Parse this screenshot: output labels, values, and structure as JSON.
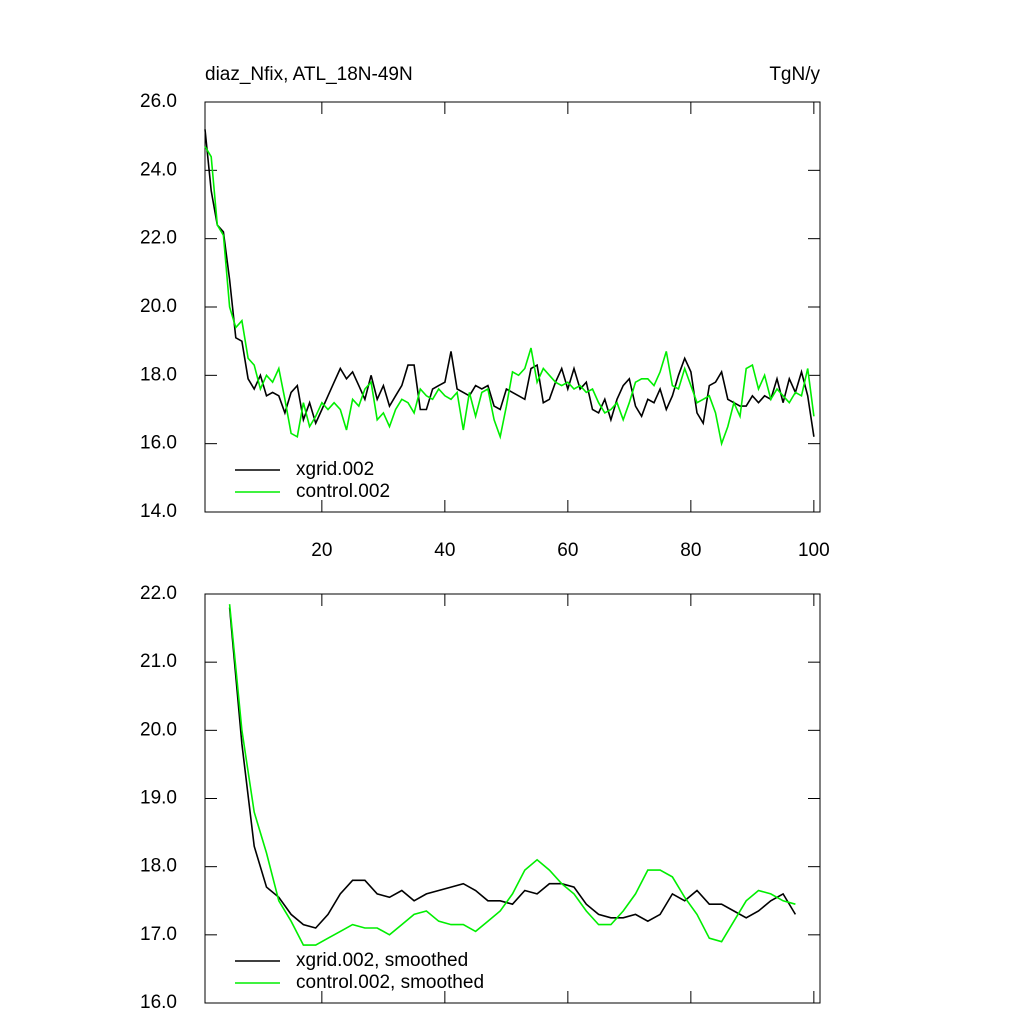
{
  "chart_data": [
    {
      "type": "line",
      "title": "diaz_Nfix, ATL_18N-49N",
      "subtitle": "TgN/y",
      "xlim": [
        1,
        101
      ],
      "xticks": [
        20,
        40,
        60,
        80,
        100
      ],
      "ylim": [
        14,
        26
      ],
      "yticks": [
        {
          "value": 14,
          "label": "14.0"
        },
        {
          "value": 16,
          "label": "16.0"
        },
        {
          "value": 18,
          "label": "18.0"
        },
        {
          "value": 20,
          "label": "20.0"
        },
        {
          "value": 22,
          "label": "22.0"
        },
        {
          "value": 24,
          "label": "24.0"
        },
        {
          "value": 26,
          "label": "26.0"
        }
      ],
      "legend": "lower left",
      "x": [
        1,
        2,
        3,
        4,
        5,
        6,
        7,
        8,
        9,
        10,
        11,
        12,
        13,
        14,
        15,
        16,
        17,
        18,
        19,
        20,
        21,
        22,
        23,
        24,
        25,
        26,
        27,
        28,
        29,
        30,
        31,
        32,
        33,
        34,
        35,
        36,
        37,
        38,
        39,
        40,
        41,
        42,
        43,
        44,
        45,
        46,
        47,
        48,
        49,
        50,
        51,
        52,
        53,
        54,
        55,
        56,
        57,
        58,
        59,
        60,
        61,
        62,
        63,
        64,
        65,
        66,
        67,
        68,
        69,
        70,
        71,
        72,
        73,
        74,
        75,
        76,
        77,
        78,
        79,
        80,
        81,
        82,
        83,
        84,
        85,
        86,
        87,
        88,
        89,
        90,
        91,
        92,
        93,
        94,
        95,
        96,
        97,
        98,
        99,
        100
      ],
      "series": [
        {
          "name": "xgrid.002",
          "color": "#000000",
          "values": [
            25.2,
            23.4,
            22.4,
            22.2,
            20.8,
            19.1,
            19.0,
            17.9,
            17.6,
            18.0,
            17.4,
            17.5,
            17.4,
            16.9,
            17.5,
            17.7,
            16.7,
            17.2,
            16.6,
            17.0,
            17.4,
            17.8,
            18.2,
            17.9,
            18.1,
            17.7,
            17.3,
            18.0,
            17.3,
            17.7,
            17.1,
            17.4,
            17.7,
            18.3,
            18.3,
            17.0,
            17.0,
            17.6,
            17.7,
            17.8,
            18.7,
            17.6,
            17.5,
            17.4,
            17.7,
            17.6,
            17.7,
            17.1,
            17.0,
            17.6,
            17.5,
            17.4,
            17.3,
            18.2,
            18.3,
            17.2,
            17.3,
            17.8,
            18.2,
            17.6,
            18.2,
            17.6,
            17.8,
            17.0,
            16.9,
            17.3,
            16.7,
            17.3,
            17.7,
            17.9,
            17.1,
            16.8,
            17.3,
            17.2,
            17.6,
            17.0,
            17.4,
            18.0,
            18.5,
            18.1,
            16.9,
            16.6,
            17.7,
            17.8,
            18.1,
            17.3,
            17.2,
            17.1,
            17.1,
            17.4,
            17.2,
            17.4,
            17.3,
            17.9,
            17.2,
            17.9,
            17.5,
            18.1,
            17.4,
            16.2
          ]
        },
        {
          "name": "control.002",
          "color": "#00ee00",
          "values": [
            24.7,
            24.4,
            22.4,
            22.1,
            20.0,
            19.4,
            19.6,
            18.5,
            18.3,
            17.6,
            18.0,
            17.8,
            18.2,
            17.3,
            16.3,
            16.2,
            17.2,
            16.5,
            16.8,
            17.2,
            17.0,
            17.2,
            17.0,
            16.4,
            17.3,
            17.1,
            17.6,
            17.8,
            16.7,
            16.9,
            16.5,
            17.0,
            17.3,
            17.2,
            16.9,
            17.6,
            17.4,
            17.3,
            17.6,
            17.4,
            17.3,
            17.5,
            16.4,
            17.5,
            16.8,
            17.5,
            17.6,
            16.7,
            16.2,
            17.1,
            18.1,
            18.0,
            18.2,
            18.8,
            17.8,
            18.2,
            18.0,
            17.8,
            17.7,
            17.8,
            17.6,
            17.7,
            17.5,
            17.6,
            17.2,
            16.9,
            17.0,
            17.2,
            16.7,
            17.2,
            17.8,
            17.9,
            17.9,
            17.7,
            18.1,
            18.7,
            17.7,
            17.6,
            18.2,
            17.7,
            17.2,
            17.3,
            17.4,
            16.9,
            16.0,
            16.5,
            17.2,
            16.8,
            18.2,
            18.3,
            17.6,
            18.0,
            17.3,
            17.6,
            17.4,
            17.2,
            17.5,
            17.4,
            18.2,
            16.8
          ]
        }
      ]
    },
    {
      "type": "line",
      "xlim": [
        1,
        101
      ],
      "xticks": [
        20,
        40,
        60,
        80,
        100
      ],
      "ylim": [
        16,
        22
      ],
      "yticks": [
        {
          "value": 16,
          "label": "16.0"
        },
        {
          "value": 17,
          "label": "17.0"
        },
        {
          "value": 18,
          "label": "18.0"
        },
        {
          "value": 19,
          "label": "19.0"
        },
        {
          "value": 20,
          "label": "20.0"
        },
        {
          "value": 21,
          "label": "21.0"
        },
        {
          "value": 22,
          "label": "22.0"
        }
      ],
      "legend": "lower left",
      "x": [
        5,
        7,
        9,
        11,
        13,
        15,
        17,
        19,
        21,
        23,
        25,
        27,
        29,
        31,
        33,
        35,
        37,
        39,
        41,
        43,
        45,
        47,
        49,
        51,
        53,
        55,
        57,
        59,
        61,
        63,
        65,
        67,
        69,
        71,
        73,
        75,
        77,
        79,
        81,
        83,
        85,
        87,
        89,
        91,
        93,
        95,
        97
      ],
      "series": [
        {
          "name": "xgrid.002, smoothed",
          "color": "#000000",
          "values": [
            21.8,
            19.8,
            18.3,
            17.7,
            17.55,
            17.3,
            17.15,
            17.1,
            17.3,
            17.6,
            17.8,
            17.8,
            17.6,
            17.55,
            17.65,
            17.5,
            17.6,
            17.65,
            17.7,
            17.75,
            17.65,
            17.5,
            17.5,
            17.45,
            17.65,
            17.6,
            17.75,
            17.75,
            17.7,
            17.45,
            17.3,
            17.25,
            17.25,
            17.3,
            17.2,
            17.3,
            17.6,
            17.5,
            17.65,
            17.45,
            17.45,
            17.35,
            17.25,
            17.35,
            17.5,
            17.6,
            17.3
          ]
        },
        {
          "name": "control.002, smoothed",
          "color": "#00ee00",
          "values": [
            21.85,
            20.0,
            18.8,
            18.2,
            17.5,
            17.2,
            16.85,
            16.85,
            16.95,
            17.05,
            17.15,
            17.1,
            17.1,
            17.0,
            17.15,
            17.3,
            17.35,
            17.2,
            17.15,
            17.15,
            17.05,
            17.2,
            17.35,
            17.6,
            17.95,
            18.1,
            17.95,
            17.75,
            17.6,
            17.35,
            17.15,
            17.15,
            17.35,
            17.6,
            17.95,
            17.95,
            17.85,
            17.55,
            17.3,
            16.95,
            16.9,
            17.2,
            17.5,
            17.65,
            17.6,
            17.5,
            17.45
          ]
        }
      ]
    }
  ]
}
